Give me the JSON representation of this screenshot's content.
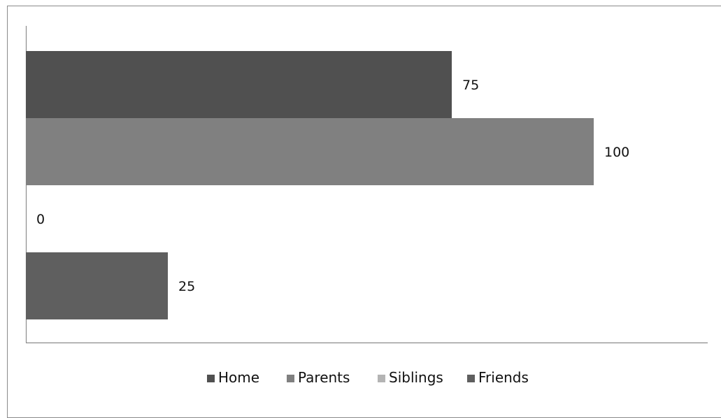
{
  "chart_data": {
    "type": "bar",
    "orientation": "horizontal",
    "series": [
      {
        "name": "Home",
        "value": 75,
        "color": "#505050"
      },
      {
        "name": "Parents",
        "value": 100,
        "color": "#808080"
      },
      {
        "name": "Siblings",
        "value": 0,
        "color": "#b4b4b4"
      },
      {
        "name": "Friends",
        "value": 25,
        "color": "#5f5f5f"
      }
    ],
    "data_labels": [
      "75",
      "100",
      "0",
      "25"
    ],
    "xlim": [
      0,
      100
    ],
    "legend_position": "bottom",
    "grid": false
  }
}
